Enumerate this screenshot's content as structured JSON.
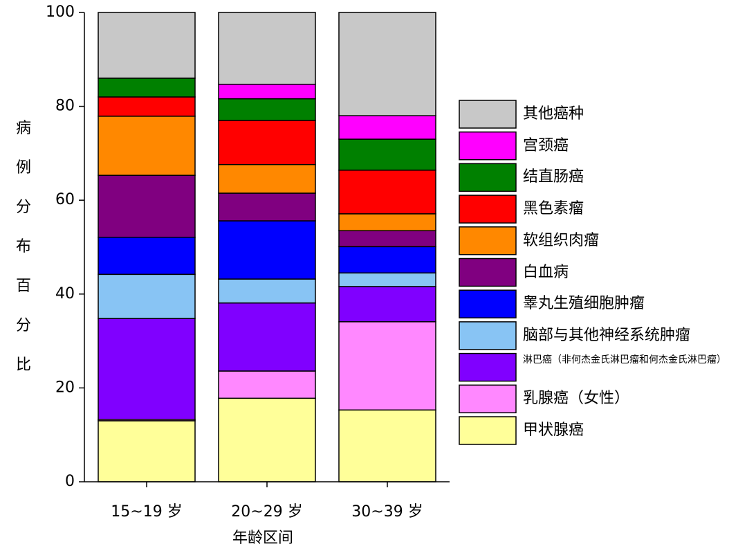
{
  "chart_data": {
    "type": "stacked_bar",
    "x_label": "年龄区间",
    "y_label": "病例分布百分比",
    "categories": [
      "15~19 岁",
      "20~29 岁",
      "30~39 岁"
    ],
    "ylim": [
      0,
      100
    ],
    "yticks": [
      0,
      20,
      40,
      60,
      80,
      100
    ],
    "series": [
      {
        "name": "甲状腺癌",
        "color": "#ffff99",
        "values": [
          13.0,
          17.8,
          15.3
        ]
      },
      {
        "name": "乳腺癌（女性）",
        "color": "#ff88ff",
        "values": [
          0.3,
          5.8,
          18.8
        ]
      },
      {
        "name": "淋巴癌（非何杰金氏淋巴瘤和何杰金氏淋巴瘤）",
        "color": "#8000ff",
        "values": [
          21.5,
          14.5,
          7.5
        ]
      },
      {
        "name": "脑部与其他神经系统肿瘤",
        "color": "#88c4f4",
        "values": [
          9.4,
          5.1,
          2.9
        ]
      },
      {
        "name": "睾丸生殖细胞肿瘤",
        "color": "#0000ff",
        "values": [
          7.9,
          12.4,
          5.6
        ]
      },
      {
        "name": "白血病",
        "color": "#800080",
        "values": [
          13.2,
          5.9,
          3.4
        ]
      },
      {
        "name": "软组织肉瘤",
        "color": "#ff8800",
        "values": [
          12.6,
          6.1,
          3.6
        ]
      },
      {
        "name": "黑色素瘤",
        "color": "#ff0000",
        "values": [
          4.1,
          9.4,
          9.3
        ]
      },
      {
        "name": "结直肠癌",
        "color": "#008000",
        "values": [
          4.0,
          4.6,
          6.6
        ]
      },
      {
        "name": "宫颈癌",
        "color": "#ff00ff",
        "values": [
          0,
          3.1,
          5.0
        ]
      },
      {
        "name": "其他癌种",
        "color": "#c8c8c8",
        "values": [
          14.0,
          15.3,
          22.0
        ]
      }
    ]
  }
}
